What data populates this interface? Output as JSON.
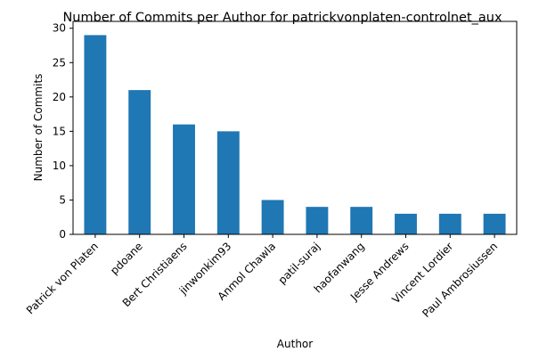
{
  "chart_data": {
    "type": "bar",
    "title": "Number of Commits per Author for patrickvonplaten-controlnet_aux",
    "xlabel": "Author",
    "ylabel": "Number of Commits",
    "categories": [
      "Patrick von Platen",
      "pdoane",
      "Bert Christiaens",
      "jinwonkim93",
      "Anmol Chawla",
      "patil-suraj",
      "haofanwang",
      "Jesse Andrews",
      "Vincent Lordier",
      "Paul Ambrosiussen"
    ],
    "values": [
      29,
      21,
      16,
      15,
      5,
      4,
      4,
      3,
      3,
      3
    ],
    "ylim": [
      0,
      31
    ],
    "yticks": [
      0,
      5,
      10,
      15,
      20,
      25,
      30
    ],
    "grid": false,
    "legend": "none",
    "bar_color": "#1f77b4"
  }
}
